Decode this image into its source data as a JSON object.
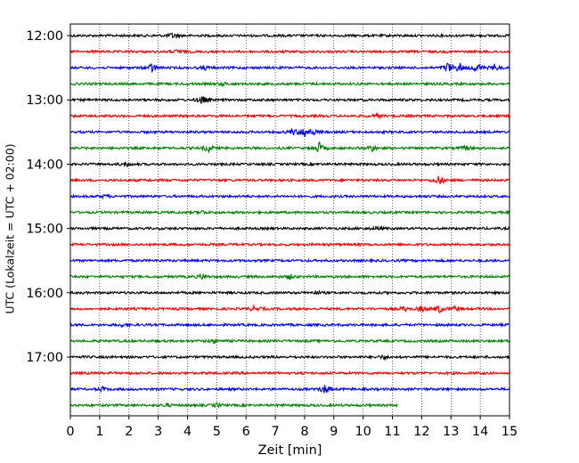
{
  "chart_data": {
    "type": "line",
    "title": "",
    "xlabel": "Zeit  [min]",
    "ylabel": "UTC (Lokalzeit = UTC + 02:00)",
    "xlim": [
      0,
      15
    ],
    "x_ticks": [
      "0",
      "1",
      "2",
      "3",
      "4",
      "5",
      "6",
      "7",
      "8",
      "9",
      "10",
      "11",
      "12",
      "13",
      "14",
      "15"
    ],
    "y_ticks": [
      "12:00",
      "13:00",
      "14:00",
      "15:00",
      "16:00",
      "17:00"
    ],
    "grid": {
      "vertical": true,
      "style": "dotted"
    },
    "trace_colors": [
      "#000000",
      "#ff0000",
      "#0000ff",
      "#008000"
    ],
    "traces": [
      {
        "start": "12:00",
        "end_min": 15,
        "color": "#000000",
        "events": [
          [
            3.5,
            0.5
          ]
        ]
      },
      {
        "start": "12:15",
        "end_min": 15,
        "color": "#ff0000",
        "events": [
          [
            3.7,
            0.4
          ]
        ]
      },
      {
        "start": "12:30",
        "end_min": 15,
        "color": "#0000ff",
        "events": [
          [
            2.8,
            0.9
          ],
          [
            4.6,
            0.3
          ],
          [
            12.9,
            1.0
          ],
          [
            13.3,
            0.8
          ],
          [
            13.9,
            1.0
          ],
          [
            14.5,
            0.6
          ]
        ]
      },
      {
        "start": "12:45",
        "end_min": 15,
        "color": "#008000",
        "events": [
          [
            5.2,
            0.3
          ]
        ]
      },
      {
        "start": "13:00",
        "end_min": 15,
        "color": "#000000",
        "events": [
          [
            4.5,
            0.8
          ]
        ]
      },
      {
        "start": "13:15",
        "end_min": 15,
        "color": "#ff0000",
        "events": [
          [
            10.5,
            0.3
          ]
        ]
      },
      {
        "start": "13:30",
        "end_min": 15,
        "color": "#0000ff",
        "events": [
          [
            7.6,
            0.6
          ],
          [
            8.0,
            1.0
          ],
          [
            8.3,
            0.5
          ]
        ]
      },
      {
        "start": "13:45",
        "end_min": 15,
        "color": "#008000",
        "events": [
          [
            4.7,
            0.7
          ],
          [
            8.5,
            1.0
          ],
          [
            10.3,
            0.6
          ],
          [
            13.5,
            0.4
          ]
        ]
      },
      {
        "start": "14:00",
        "end_min": 15,
        "color": "#000000",
        "events": [
          [
            1.9,
            0.4
          ]
        ]
      },
      {
        "start": "14:15",
        "end_min": 15,
        "color": "#ff0000",
        "events": [
          [
            12.6,
            0.9
          ]
        ]
      },
      {
        "start": "14:30",
        "end_min": 15,
        "color": "#0000ff",
        "events": [
          [
            1.2,
            0.3
          ]
        ]
      },
      {
        "start": "14:45",
        "end_min": 15,
        "color": "#008000",
        "events": [
          [
            4.5,
            0.3
          ]
        ]
      },
      {
        "start": "15:00",
        "end_min": 15,
        "color": "#000000",
        "events": [
          [
            10.5,
            0.3
          ]
        ]
      },
      {
        "start": "15:15",
        "end_min": 15,
        "color": "#ff0000",
        "events": []
      },
      {
        "start": "15:30",
        "end_min": 15,
        "color": "#0000ff",
        "events": []
      },
      {
        "start": "15:45",
        "end_min": 15,
        "color": "#008000",
        "events": [
          [
            4.5,
            0.4
          ],
          [
            7.5,
            0.4
          ]
        ]
      },
      {
        "start": "16:00",
        "end_min": 15,
        "color": "#000000",
        "events": [
          [
            8.4,
            0.3
          ]
        ]
      },
      {
        "start": "16:15",
        "end_min": 15,
        "color": "#ff0000",
        "events": [
          [
            6.3,
            0.5
          ],
          [
            11.4,
            0.4
          ],
          [
            12.0,
            0.6
          ],
          [
            12.6,
            0.7
          ],
          [
            13.2,
            0.5
          ]
        ]
      },
      {
        "start": "16:30",
        "end_min": 15,
        "color": "#0000ff",
        "events": [
          [
            1.8,
            0.3
          ]
        ]
      },
      {
        "start": "16:45",
        "end_min": 15,
        "color": "#008000",
        "events": [
          [
            4.9,
            0.3
          ]
        ]
      },
      {
        "start": "17:00",
        "end_min": 15,
        "color": "#000000",
        "events": [
          [
            10.7,
            0.3
          ]
        ]
      },
      {
        "start": "17:15",
        "end_min": 15,
        "color": "#ff0000",
        "events": []
      },
      {
        "start": "17:30",
        "end_min": 15,
        "color": "#0000ff",
        "events": [
          [
            1.1,
            0.4
          ],
          [
            8.7,
            0.9
          ]
        ]
      },
      {
        "start": "17:45",
        "end_min": 11.2,
        "color": "#008000",
        "events": [
          [
            3.3,
            0.3
          ],
          [
            5.0,
            0.3
          ]
        ]
      }
    ]
  }
}
